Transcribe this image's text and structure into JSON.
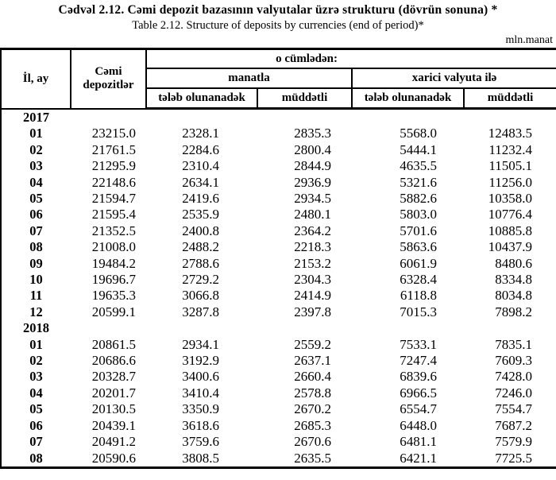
{
  "header": {
    "title_az": "Cədvəl  2.12. Cəmi depozit bazasının valyutalar üzrə strukturu (dövrün sonuna) *",
    "title_en": "Table  2.12. Structure of deposits by currencies (end of period)*",
    "unit": "mln.manat"
  },
  "table": {
    "columns": {
      "period": "İl, ay",
      "total": "Cəmi depozitlər",
      "including": "o cümlədən:",
      "in_manat": "manatla",
      "in_foreign": "xarici valyuta ilə",
      "demand": "tələb olunanadək",
      "time": "müddətli"
    },
    "sections": [
      {
        "year": "2017",
        "rows": [
          {
            "month": "01",
            "values": [
              "23215.0",
              "2328.1",
              "2835.3",
              "5568.0",
              "12483.5"
            ]
          },
          {
            "month": "02",
            "values": [
              "21761.5",
              "2284.6",
              "2800.4",
              "5444.1",
              "11232.4"
            ]
          },
          {
            "month": "03",
            "values": [
              "21295.9",
              "2310.4",
              "2844.9",
              "4635.5",
              "11505.1"
            ]
          },
          {
            "month": "04",
            "values": [
              "22148.6",
              "2634.1",
              "2936.9",
              "5321.6",
              "11256.0"
            ]
          },
          {
            "month": "05",
            "values": [
              "21594.7",
              "2419.6",
              "2934.5",
              "5882.6",
              "10358.0"
            ]
          },
          {
            "month": "06",
            "values": [
              "21595.4",
              "2535.9",
              "2480.1",
              "5803.0",
              "10776.4"
            ]
          },
          {
            "month": "07",
            "values": [
              "21352.5",
              "2400.8",
              "2364.2",
              "5701.6",
              "10885.8"
            ]
          },
          {
            "month": "08",
            "values": [
              "21008.0",
              "2488.2",
              "2218.3",
              "5863.6",
              "10437.9"
            ]
          },
          {
            "month": "09",
            "values": [
              "19484.2",
              "2788.6",
              "2153.2",
              "6061.9",
              "8480.6"
            ]
          },
          {
            "month": "10",
            "values": [
              "19696.7",
              "2729.2",
              "2304.3",
              "6328.4",
              "8334.8"
            ]
          },
          {
            "month": "11",
            "values": [
              "19635.3",
              "3066.8",
              "2414.9",
              "6118.8",
              "8034.8"
            ]
          },
          {
            "month": "12",
            "values": [
              "20599.1",
              "3287.8",
              "2397.8",
              "7015.3",
              "7898.2"
            ]
          }
        ]
      },
      {
        "year": "2018",
        "rows": [
          {
            "month": "01",
            "values": [
              "20861.5",
              "2934.1",
              "2559.2",
              "7533.1",
              "7835.1"
            ]
          },
          {
            "month": "02",
            "values": [
              "20686.6",
              "3192.9",
              "2637.1",
              "7247.4",
              "7609.3"
            ]
          },
          {
            "month": "03",
            "values": [
              "20328.7",
              "3400.6",
              "2660.4",
              "6839.6",
              "7428.0"
            ]
          },
          {
            "month": "04",
            "values": [
              "20201.7",
              "3410.4",
              "2578.8",
              "6966.5",
              "7246.0"
            ]
          },
          {
            "month": "05",
            "values": [
              "20130.5",
              "3350.9",
              "2670.2",
              "6554.7",
              "7554.7"
            ]
          },
          {
            "month": "06",
            "values": [
              "20439.1",
              "3618.6",
              "2685.3",
              "6448.0",
              "7687.2"
            ]
          },
          {
            "month": "07",
            "values": [
              "20491.2",
              "3759.6",
              "2670.6",
              "6481.1",
              "7579.9"
            ]
          },
          {
            "month": "08",
            "values": [
              "20590.6",
              "3808.5",
              "2635.5",
              "6421.1",
              "7725.5"
            ]
          }
        ]
      }
    ]
  }
}
